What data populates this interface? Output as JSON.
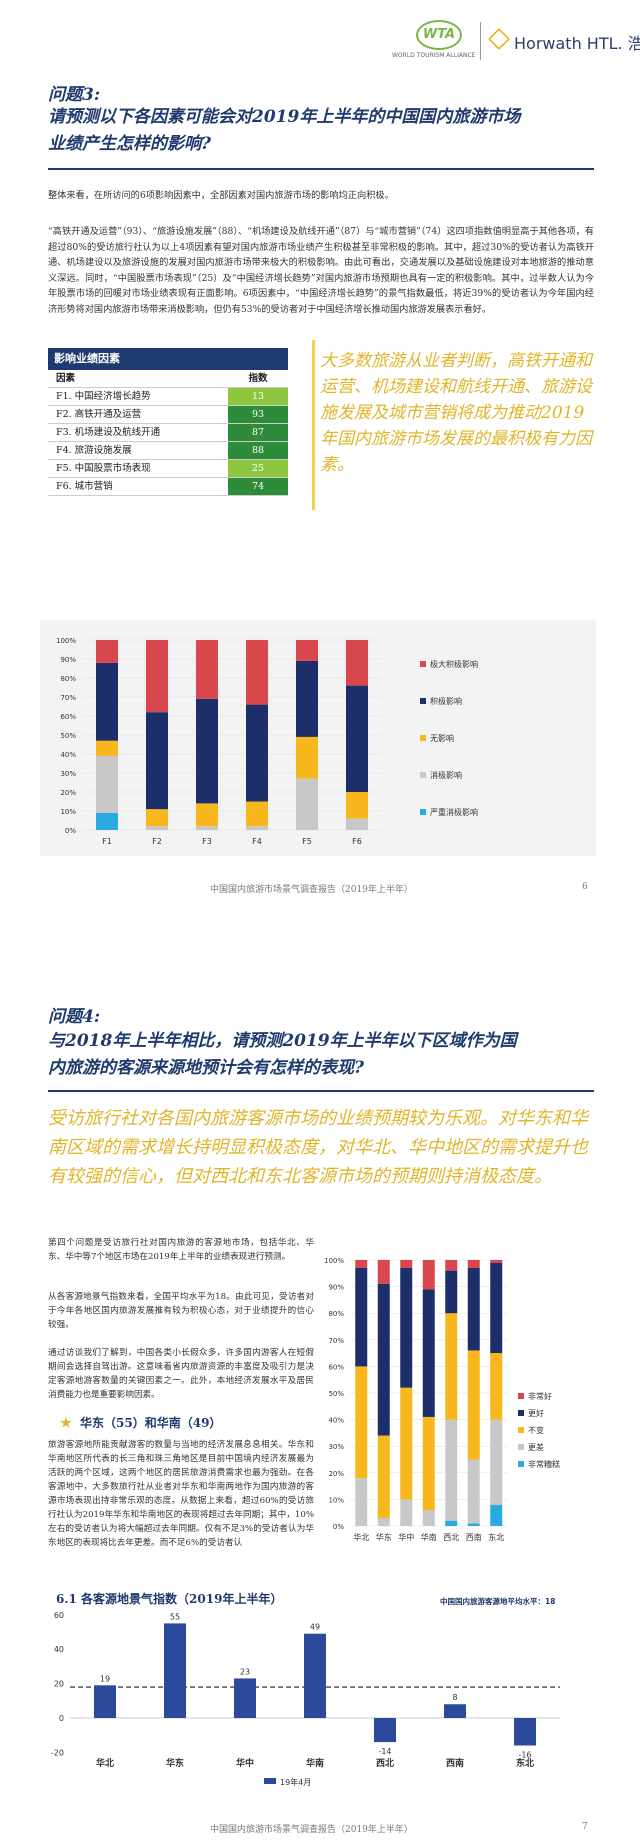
{
  "header": {
    "wta_logo": "WTA",
    "wta_sub": "WORLD TOURISM ALLIANCE",
    "horwath_logo": "Horwath HTL. 浩华"
  },
  "q3": {
    "label": "问题3:",
    "title_line1": "请预测以下各因素可能会对2019年上半年的中国国内旅游市场",
    "title_line2": "业绩产生怎样的影响?",
    "p1": "整体来看，在所访问的6项影响因素中，全部因素对国内旅游市场的影响均正向积极。",
    "p2": "“高铁开通及运营”（93）、“旅游设施发展”（88）、“机场建设及航线开通”（87）与“城市营销”（74）这四项指数值明显高于其他各项，有超过80%的受访旅行社认为以上4项因素有望对国内旅游市场业绩产生积极甚至非常积极的影响。其中，超过30%的受访者认为高铁开通、机场建设以及旅游设施的发展对国内旅游市场带来极大的积极影响。由此可看出，交通发展以及基础设施建设对本地旅游的推动意义深远。同时，“中国股票市场表现”（25）及“中国经济增长趋势”对国内旅游市场预期也具有一定的积极影响。其中，过半数人认为今年股票市场的回暖对市场业绩表现有正面影响。6项因素中，“中国经济增长趋势”的景气指数最低，将近39%的受访者认为今年国内经济形势将对国内旅游市场带来消极影响，但仍有53%的受访者对于中国经济增长推动国内旅游发展表示看好。",
    "table": {
      "title": "影响业绩因素",
      "col1": "因素",
      "col2": "指数",
      "rows": [
        {
          "name": "F1. 中国经济增长趋势",
          "value": "13",
          "color": "#8dc63f"
        },
        {
          "name": "F2. 高铁开通及运营",
          "value": "93",
          "color": "#2e8b3a"
        },
        {
          "name": "F3. 机场建设及航线开通",
          "value": "87",
          "color": "#2e8b3a"
        },
        {
          "name": "F4. 旅游设施发展",
          "value": "88",
          "color": "#2e8b3a"
        },
        {
          "name": "F5. 中国股票市场表现",
          "value": "25",
          "color": "#8dc63f"
        },
        {
          "name": "F6. 城市营销",
          "value": "74",
          "color": "#2e8b3a"
        }
      ]
    },
    "quote": "大多数旅游从业者判断，高铁开通和运营、机场建设和航线开通、旅游设施发展及城市营销将成为推动2019年国内旅游市场发展的最积极有力因素。",
    "footer": "中国国内旅游市场景气调查报告（2019年上半年）",
    "page": "6"
  },
  "q4": {
    "label": "问题4:",
    "title_line1": "与2018年上半年相比，请预测2019年上半年以下区域作为国",
    "title_line2": "内旅游的客源来源地预计会有怎样的表现?",
    "quote": "受访旅行社对各国内旅游客源市场的业绩预期较为乐观。对华东和华南区域的需求增长持明显积极态度，对华北、华中地区的需求提升也有较强的信心，但对西北和东北客源市场的预期则持消极态度。",
    "p1": "第四个问题是受访旅行社对国内旅游的客源地市场，包括华北、华东、华中等7个地区市场在2019年上半年的业绩表现进行预测。",
    "p2": "从各客源地景气指数来看，全国平均水平为18。由此可见，受访者对于今年各地区国内旅游发展推有较为积极心态，对于业绩提升的信心较强。",
    "p3": "通过访谈我们了解到，中国各类小长假众多，许多国内游客人在短假期间会选择自驾出游。这意味着省内旅游资源的丰富度及吸引力是决定客源地游客数量的关键因素之一。此外，本地经济发展水平及居民消费能力也是重要影响因素。",
    "sub_heading": "华东（55）和华南（49）",
    "p4": "旅游客源地所能贡献游客的数量与当地的经济发展息息相关。华东和华南地区所代表的长三角和珠三角地区是目前中国境内经济发展最为活跃的两个区域，这两个地区的居民旅游消费需求也最为强劲。在各客源地中，大多数旅行社从业者对华东和华南两地作为国内旅游的客源市场表现出持非常乐观的态度。从数据上来看，超过60%的受访旅行社认为2019年华东和华南地区的表现将超过去年同期；其中，10%左右的受访者认为将大幅超过去年同期。仅有不足3%的受访者认为华东地区的表现将比去年更差。而不足6%的受访者认",
    "bar_title": "6.1 各客源地景气指数（2019年上半年）",
    "avg_label": "中国国内旅游客源地平均水平：18",
    "footer": "中国国内旅游市场景气调查报告（2019年上半年）",
    "page": "7"
  },
  "chart_data": [
    {
      "type": "bar",
      "stacked": true,
      "categories": [
        "F1",
        "F2",
        "F3",
        "F4",
        "F5",
        "F6"
      ],
      "yticks": [
        "0%",
        "10%",
        "20%",
        "30%",
        "40%",
        "50%",
        "60%",
        "70%",
        "80%",
        "90%",
        "100%"
      ],
      "ylim": [
        0,
        100
      ],
      "legend_position": "right",
      "series": [
        {
          "name": "严重消极影响",
          "color": "#29abe2",
          "values": [
            9,
            0,
            0,
            0,
            0,
            0
          ]
        },
        {
          "name": "消极影响",
          "color": "#c8c8c8",
          "values": [
            30,
            2,
            2,
            2,
            27,
            6
          ]
        },
        {
          "name": "无影响",
          "color": "#f7b71d",
          "values": [
            8,
            9,
            12,
            13,
            22,
            14
          ]
        },
        {
          "name": "积极影响",
          "color": "#1c2f6b",
          "values": [
            41,
            51,
            55,
            51,
            40,
            56
          ]
        },
        {
          "name": "极大积极影响",
          "color": "#d9474e",
          "values": [
            12,
            38,
            31,
            34,
            11,
            24
          ]
        }
      ]
    },
    {
      "type": "bar",
      "stacked": true,
      "categories": [
        "华北",
        "华东",
        "华中",
        "华南",
        "西北",
        "西南",
        "东北"
      ],
      "yticks": [
        "0%",
        "10%",
        "20%",
        "30%",
        "40%",
        "50%",
        "60%",
        "70%",
        "80%",
        "90%",
        "100%"
      ],
      "ylim": [
        0,
        100
      ],
      "legend_position": "right",
      "series": [
        {
          "name": "非常糟糕",
          "color": "#29abe2",
          "values": [
            0,
            0,
            0,
            0,
            2,
            1,
            8
          ]
        },
        {
          "name": "更差",
          "color": "#c8c8c8",
          "values": [
            18,
            3,
            10,
            6,
            38,
            24,
            32
          ]
        },
        {
          "name": "不变",
          "color": "#f7b71d",
          "values": [
            42,
            31,
            42,
            35,
            40,
            41,
            25
          ]
        },
        {
          "name": "更好",
          "color": "#1c2f6b",
          "values": [
            37,
            57,
            45,
            48,
            16,
            31,
            34
          ]
        },
        {
          "name": "非常好",
          "color": "#d9474e",
          "values": [
            3,
            9,
            3,
            11,
            4,
            3,
            1
          ]
        }
      ]
    },
    {
      "type": "bar",
      "categories": [
        "华北",
        "华东",
        "华中",
        "华南",
        "西北",
        "西南",
        "东北"
      ],
      "values": [
        19,
        55,
        23,
        49,
        -14,
        8,
        -16
      ],
      "yticks": [
        "-20",
        "0",
        "20",
        "40",
        "60"
      ],
      "ylim": [
        -20,
        60
      ],
      "reference_line": 18,
      "series_name": "19年4月",
      "color": "#2b4a9b"
    }
  ]
}
